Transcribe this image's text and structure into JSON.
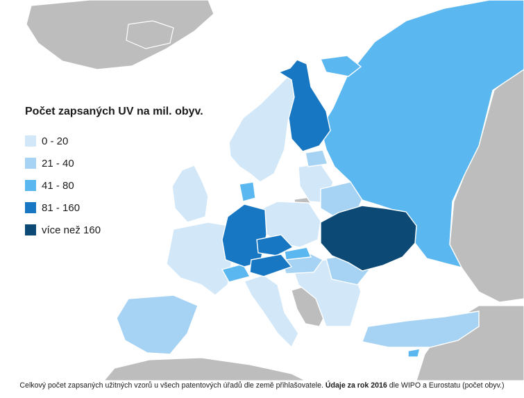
{
  "legend": {
    "title": "Počet zapsaných UV na mil. obyv.",
    "items": [
      {
        "label": "0 - 20",
        "color": "#d2e7f7"
      },
      {
        "label": "21 - 40",
        "color": "#a6d3f4"
      },
      {
        "label": "41 - 80",
        "color": "#5bb7f0"
      },
      {
        "label": "81 - 160",
        "color": "#1877c2"
      },
      {
        "label": "více než 160",
        "color": "#0c4a75"
      }
    ]
  },
  "colors": {
    "sea": "#ffffff",
    "no_data": "#bdbdbd",
    "border": "#ffffff"
  },
  "caption": {
    "part1": "Celkový počet zapsaných užitných vzorů u všech patentových úřadů dle země přihlašovatele. ",
    "bold": "Údaje za rok 2016",
    "part2": " dle WIPO a Eurostatu (počet obyv.)"
  }
}
